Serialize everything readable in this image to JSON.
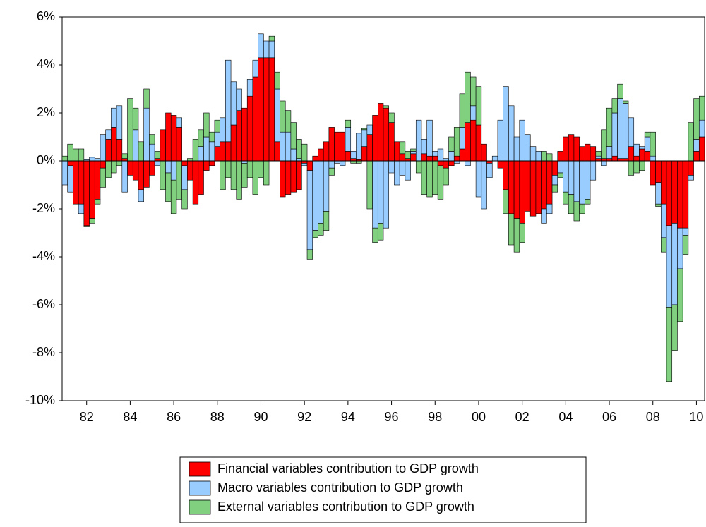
{
  "chart_data": {
    "type": "stacked_bar",
    "categories": [
      null,
      null,
      null,
      null,
      "82",
      null,
      null,
      null,
      null,
      null,
      null,
      null,
      "84",
      null,
      null,
      null,
      null,
      null,
      null,
      null,
      "86",
      null,
      null,
      null,
      null,
      null,
      null,
      null,
      "88",
      null,
      null,
      null,
      null,
      null,
      null,
      null,
      "90",
      null,
      null,
      null,
      null,
      null,
      null,
      null,
      "92",
      null,
      null,
      null,
      null,
      null,
      null,
      null,
      "94",
      null,
      null,
      null,
      null,
      null,
      null,
      null,
      "96",
      null,
      null,
      null,
      null,
      null,
      null,
      null,
      "98",
      null,
      null,
      null,
      null,
      null,
      null,
      null,
      "00",
      null,
      null,
      null,
      null,
      null,
      null,
      null,
      "02",
      null,
      null,
      null,
      null,
      null,
      null,
      null,
      "04",
      null,
      null,
      null,
      null,
      null,
      null,
      null,
      "06",
      null,
      null,
      null,
      null,
      null,
      null,
      null,
      "08",
      null,
      null,
      null,
      null,
      null,
      null,
      null,
      "10",
      null
    ],
    "series": [
      {
        "name": "Financial variables contribution to GDP growth",
        "color": "#ff0000",
        "values": [
          0,
          -0.2,
          -1.8,
          -1.8,
          -2.7,
          -2.4,
          -1.6,
          -0.3,
          0.9,
          1.4,
          0.9,
          0.1,
          -0.6,
          -0.8,
          -1.2,
          -1.1,
          -0.6,
          0.1,
          1.3,
          2.0,
          1.9,
          1.4,
          -0.2,
          -0.8,
          -1.8,
          -1.4,
          -0.4,
          -0.2,
          0.6,
          0.8,
          0.8,
          1.5,
          2.1,
          2.2,
          2.7,
          3.5,
          4.3,
          4.3,
          4.3,
          0.8,
          -1.5,
          -1.4,
          -1.3,
          -1.2,
          -0.1,
          -0.4,
          0.2,
          0.5,
          0.8,
          1.4,
          1.2,
          1.2,
          0.4,
          0.1,
          0.05,
          0.6,
          1.1,
          1.9,
          2.4,
          2.2,
          1.6,
          0.8,
          0.3,
          0.1,
          0.3,
          0,
          0.3,
          0.2,
          0.2,
          -0.2,
          -0.3,
          -0.2,
          0.2,
          0.5,
          1.6,
          1.7,
          1.5,
          0.7,
          -0.1,
          0,
          -0.3,
          -1.2,
          -2.2,
          -2.4,
          -2.6,
          -2.1,
          -2.3,
          -2.2,
          -2.0,
          -1.8,
          -0.6,
          0.4,
          1.0,
          1.1,
          1.0,
          0.6,
          0.7,
          0.6,
          0.1,
          0.1,
          0.1,
          0.2,
          0.1,
          0.1,
          0.6,
          0.2,
          0.5,
          0.4,
          -1.0,
          -0.9,
          -1.8,
          -2.7,
          -2.6,
          -2.8,
          -2.8,
          -0.6,
          0.4,
          1.0
        ]
      },
      {
        "name": "Macro variables contribution to GDP growth",
        "color": "#99ccff",
        "values": [
          -1.0,
          -1.1,
          0,
          -0.4,
          0.05,
          0.15,
          0.1,
          1.1,
          0.4,
          0.8,
          1.4,
          -1.3,
          0,
          1.3,
          -0.5,
          2.2,
          0.7,
          -0.2,
          0,
          -0.5,
          -0.8,
          0.4,
          -1.0,
          0,
          0,
          0.6,
          1.0,
          0.8,
          0.6,
          1.0,
          3.4,
          1.8,
          0.9,
          -0.1,
          0.7,
          0.7,
          1.0,
          0.7,
          0.7,
          2.2,
          1.2,
          1.2,
          0.5,
          0.1,
          -0.1,
          -3.3,
          -2.9,
          -2.6,
          -2.1,
          -0.3,
          -0.1,
          -0.2,
          1.0,
          0.3,
          1.1,
          0.7,
          0.4,
          -2.8,
          -2.6,
          -2.8,
          -0.5,
          -1.0,
          -0.6,
          -0.8,
          0.1,
          1.7,
          0.6,
          1.5,
          0.2,
          0.5,
          0.1,
          0.4,
          -0.1,
          0.9,
          -0.2,
          0.6,
          -1.5,
          -2.0,
          -0.6,
          0.2,
          1.7,
          3.1,
          2.3,
          1.0,
          1.7,
          1.1,
          0.6,
          0.4,
          -0.6,
          -0.4,
          -0.4,
          -0.5,
          -1.3,
          -1.4,
          -1.7,
          -1.8,
          -1.6,
          -0.8,
          0.1,
          -0.2,
          0.5,
          1.8,
          2.5,
          2.3,
          1.2,
          0.5,
          0.1,
          0.6,
          0.2,
          -0.9,
          -1.4,
          -3.4,
          -3.4,
          -1.7,
          -0.3,
          -0.2,
          0.5,
          0.7
        ]
      },
      {
        "name": "External variables contribution to GDP growth",
        "color": "#80d080",
        "values": [
          0.2,
          0.7,
          0.5,
          0.5,
          -0.05,
          -0.2,
          -0.2,
          -0.8,
          -0.7,
          -0.5,
          -0.2,
          0.2,
          2.6,
          0.9,
          0.8,
          0.8,
          0.4,
          0.3,
          -1.2,
          -1.2,
          -1.4,
          -1.6,
          -0.8,
          0.1,
          0.9,
          0.7,
          1.0,
          0.4,
          0.5,
          -1.2,
          -0.7,
          -1.2,
          -1.6,
          -1.0,
          -0.7,
          -1.4,
          -0.7,
          -1.0,
          0.2,
          0.7,
          1.3,
          0.9,
          1.1,
          0.8,
          0.7,
          -0.4,
          -0.3,
          -0.5,
          -0.8,
          -0.3,
          0,
          0,
          0.3,
          -0.1,
          -0.1,
          0.05,
          -2.0,
          -0.6,
          -0.7,
          0.1,
          0.4,
          0,
          0.5,
          0.3,
          0.1,
          -0.5,
          -1.4,
          -1.5,
          -1.4,
          -1.4,
          -0.7,
          0.6,
          1.2,
          1.4,
          2.1,
          1.2,
          1.6,
          0,
          0,
          0,
          0,
          -1.0,
          -1.3,
          -1.4,
          -0.8,
          0,
          0,
          0,
          0.4,
          0.3,
          -0.3,
          -0.2,
          -0.5,
          -0.8,
          -0.8,
          -0.4,
          -0.2,
          0,
          0.2,
          1.2,
          1.6,
          0.6,
          0.6,
          0.1,
          -0.6,
          -0.5,
          -0.4,
          0.2,
          1.0,
          -0.1,
          -0.6,
          -3.1,
          -1.9,
          -2.2,
          -0.8,
          1.6,
          1.7,
          1.0
        ]
      }
    ],
    "ylim": [
      -10,
      6
    ],
    "yticks": [
      {
        "value": -10,
        "label": "-10%"
      },
      {
        "value": -8,
        "label": "-8%"
      },
      {
        "value": -6,
        "label": "-6%"
      },
      {
        "value": -4,
        "label": "-4%"
      },
      {
        "value": -2,
        "label": "-2%"
      },
      {
        "value": 0,
        "label": "0%"
      },
      {
        "value": 2,
        "label": "2%"
      },
      {
        "value": 4,
        "label": "4%"
      },
      {
        "value": 6,
        "label": "6%"
      }
    ]
  }
}
